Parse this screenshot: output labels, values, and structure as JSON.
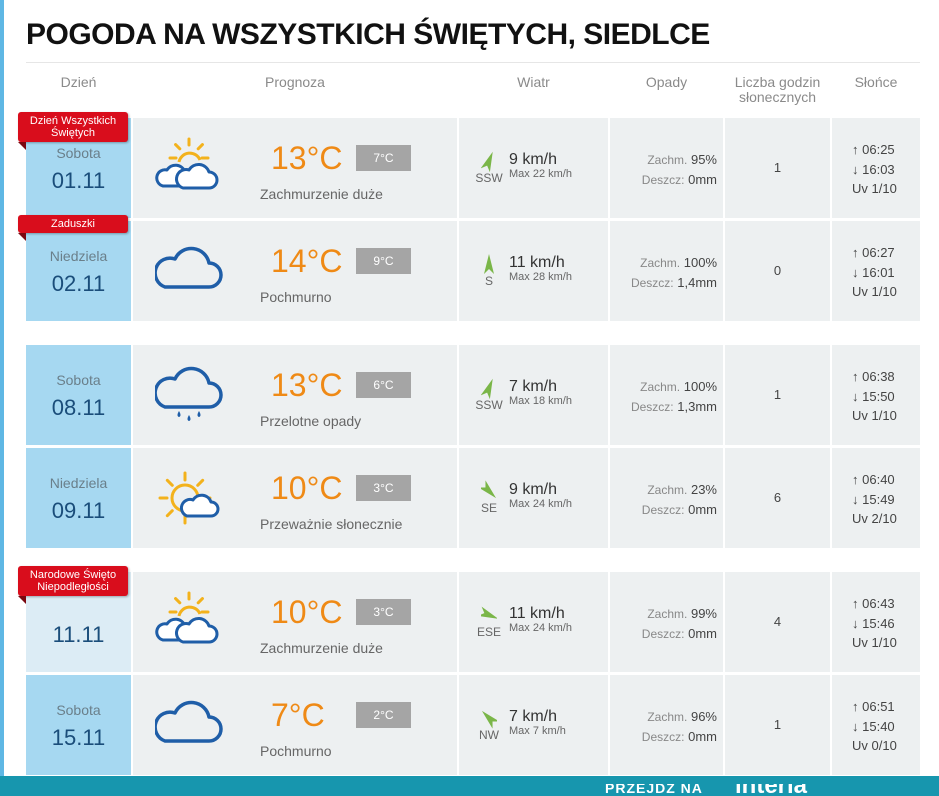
{
  "page": {
    "title": "POGODA NA WSZYSTKICH ŚWIĘTYCH, SIEDLCE"
  },
  "headers": {
    "day": "Dzień",
    "forecast": "Prognoza",
    "wind": "Wiatr",
    "precip": "Opady",
    "sun_hours_line1": "Liczba godzin",
    "sun_hours_line2": "słonecznych",
    "sun": "Słońce"
  },
  "labels": {
    "cloud": "Zachm.",
    "rain": "Deszcz:",
    "sunrise_icon": "↑",
    "sunset_icon": "↓"
  },
  "colors": {
    "day_cell": "#a6d8f1",
    "temperature": "#ef8a16",
    "banner": "#d90d1c",
    "wind_arrow": "#7ab648",
    "icon_outline": "#1f5ea8",
    "sun": "#f3b21c"
  },
  "rows": [
    {
      "banner": "Dzień Wszystkich Świętych",
      "day_name": "Sobota",
      "date": "01.11",
      "icon": "sun-cloud-icon",
      "temp": "13°C",
      "temp_min": "7°C",
      "desc": "Zachmurzenie duże",
      "wind_dir": "SSW",
      "wind_rot": 22,
      "wind_speed": "9 km/h",
      "wind_max": "Max 22 km/h",
      "cloud": "95%",
      "rain": "0mm",
      "sun_hours": "1",
      "sunrise": "06:25",
      "sunset": "16:03",
      "uv": "Uv 1/10"
    },
    {
      "banner": "Zaduszki",
      "day_name": "Niedziela",
      "date": "02.11",
      "icon": "cloud-icon",
      "temp": "14°C",
      "temp_min": "9°C",
      "desc": "Pochmurno",
      "wind_dir": "S",
      "wind_rot": 0,
      "wind_speed": "11 km/h",
      "wind_max": "Max 28 km/h",
      "cloud": "100%",
      "rain": "1,4mm",
      "sun_hours": "0",
      "sunrise": "06:27",
      "sunset": "16:01",
      "uv": "Uv 1/10"
    },
    {
      "banner": "",
      "day_name": "Sobota",
      "date": "08.11",
      "icon": "rain-cloud-icon",
      "temp": "13°C",
      "temp_min": "6°C",
      "desc": "Przelotne opady",
      "wind_dir": "SSW",
      "wind_rot": 22,
      "wind_speed": "7 km/h",
      "wind_max": "Max 18 km/h",
      "cloud": "100%",
      "rain": "1,3mm",
      "sun_hours": "1",
      "sunrise": "06:38",
      "sunset": "15:50",
      "uv": "Uv 1/10"
    },
    {
      "banner": "",
      "day_name": "Niedziela",
      "date": "09.11",
      "icon": "sun-small-cloud-icon",
      "temp": "10°C",
      "temp_min": "3°C",
      "desc": "Przeważnie słonecznie",
      "wind_dir": "SE",
      "wind_rot": 135,
      "wind_speed": "9 km/h",
      "wind_max": "Max 24 km/h",
      "cloud": "23%",
      "rain": "0mm",
      "sun_hours": "6",
      "sunrise": "06:40",
      "sunset": "15:49",
      "uv": "Uv 2/10"
    },
    {
      "banner": "Narodowe Święto Niepodległości",
      "day_name": "",
      "date": "11.11",
      "icon": "sun-cloud-icon",
      "temp": "10°C",
      "temp_min": "3°C",
      "desc": "Zachmurzenie duże",
      "wind_dir": "ESE",
      "wind_rot": 112,
      "wind_speed": "11 km/h",
      "wind_max": "Max 24 km/h",
      "cloud": "99%",
      "rain": "0mm",
      "sun_hours": "4",
      "sunrise": "06:43",
      "sunset": "15:46",
      "uv": "Uv 1/10"
    },
    {
      "banner": "",
      "day_name": "Sobota",
      "date": "15.11",
      "icon": "cloud-icon",
      "temp": "7°C",
      "temp_min": "2°C",
      "desc": "Pochmurno",
      "wind_dir": "NW",
      "wind_rot": 315,
      "wind_speed": "7 km/h",
      "wind_max": "Max 7 km/h",
      "cloud": "96%",
      "rain": "0mm",
      "sun_hours": "1",
      "sunrise": "06:51",
      "sunset": "15:40",
      "uv": "Uv 0/10"
    }
  ],
  "footer": {
    "promo_text": "PRZEJDŹ NA",
    "promo_logo": "interia"
  }
}
